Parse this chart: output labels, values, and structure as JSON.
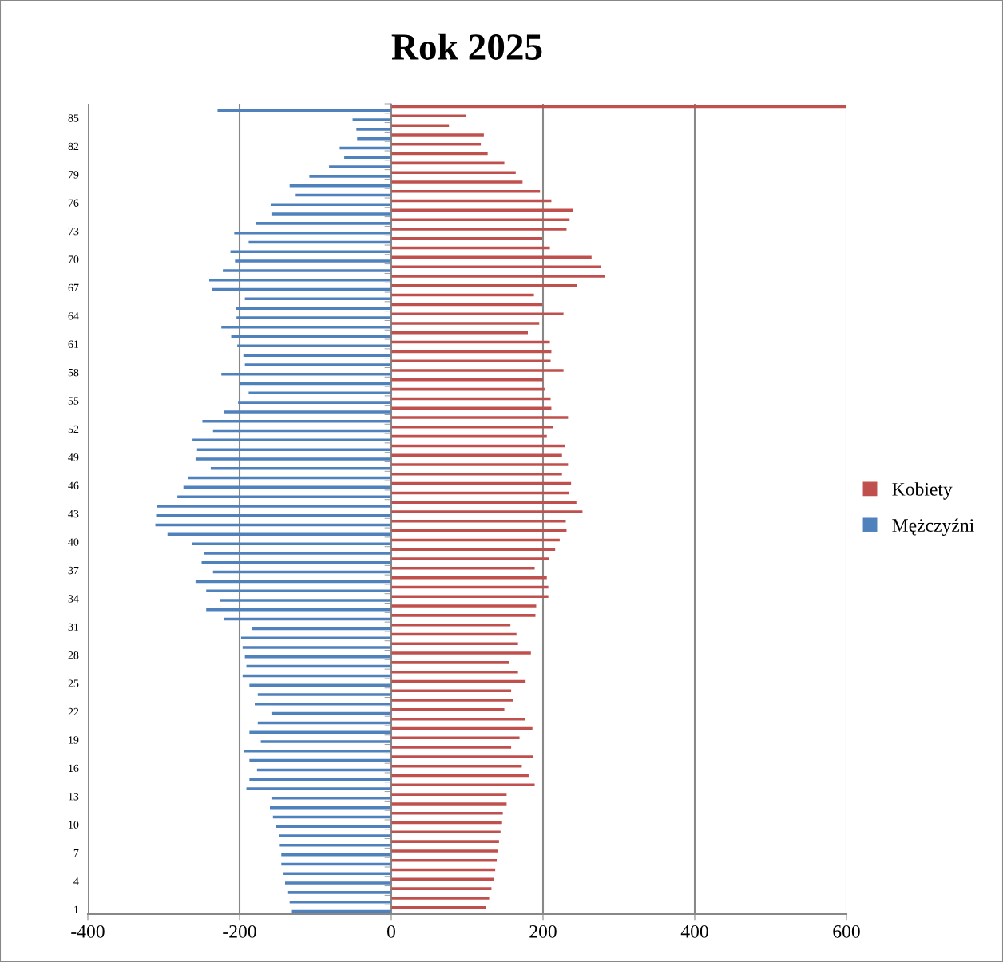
{
  "chart_data": {
    "type": "bar",
    "orientation": "horizontal",
    "title": "Rok 2025",
    "categories": [
      null,
      "85",
      null,
      null,
      "82",
      null,
      null,
      "79",
      null,
      null,
      "76",
      null,
      null,
      "73",
      null,
      null,
      "70",
      null,
      null,
      "67",
      null,
      null,
      "64",
      null,
      null,
      "61",
      null,
      null,
      "58",
      null,
      null,
      "55",
      null,
      null,
      "52",
      null,
      null,
      "49",
      null,
      null,
      "46",
      null,
      null,
      "43",
      null,
      null,
      "40",
      null,
      null,
      "37",
      null,
      null,
      "34",
      null,
      null,
      "31",
      null,
      null,
      "28",
      null,
      null,
      "25",
      null,
      null,
      "22",
      null,
      null,
      "19",
      null,
      null,
      "16",
      null,
      null,
      "13",
      null,
      null,
      "10",
      null,
      null,
      "7",
      null,
      null,
      "4",
      null,
      null,
      "1"
    ],
    "series": [
      {
        "name": "Kobiety",
        "color": "#c0504d",
        "values": [
          600,
          99,
          76,
          122,
          118,
          127,
          149,
          164,
          173,
          196,
          211,
          240,
          235,
          231,
          199,
          209,
          264,
          276,
          282,
          245,
          188,
          199,
          227,
          195,
          180,
          209,
          211,
          210,
          227,
          200,
          202,
          210,
          211,
          233,
          213,
          205,
          229,
          225,
          233,
          225,
          237,
          234,
          244,
          252,
          230,
          231,
          222,
          216,
          208,
          189,
          205,
          207,
          207,
          191,
          190,
          157,
          165,
          167,
          184,
          155,
          167,
          177,
          158,
          161,
          149,
          176,
          186,
          169,
          158,
          187,
          172,
          181,
          189,
          152,
          152,
          147,
          146,
          144,
          142,
          141,
          139,
          137,
          135,
          132,
          129,
          125
        ]
      },
      {
        "name": "Mężczyźni",
        "color": "#4f81bd",
        "values": [
          -229,
          -51,
          -46,
          -45,
          -68,
          -62,
          -82,
          -108,
          -134,
          -126,
          -159,
          -158,
          -179,
          -207,
          -188,
          -212,
          -206,
          -222,
          -240,
          -236,
          -193,
          -205,
          -204,
          -224,
          -211,
          -203,
          -195,
          -193,
          -224,
          -200,
          -188,
          -202,
          -220,
          -249,
          -235,
          -262,
          -256,
          -258,
          -238,
          -268,
          -274,
          -282,
          -309,
          -310,
          -311,
          -295,
          -263,
          -247,
          -250,
          -235,
          -258,
          -244,
          -226,
          -244,
          -220,
          -184,
          -198,
          -196,
          -193,
          -191,
          -196,
          -187,
          -176,
          -180,
          -158,
          -176,
          -187,
          -172,
          -194,
          -187,
          -177,
          -187,
          -191,
          -158,
          -160,
          -156,
          -152,
          -148,
          -147,
          -145,
          -145,
          -142,
          -140,
          -136,
          -134,
          -131
        ]
      }
    ],
    "xlim": [
      -400,
      600
    ],
    "xticks": [
      -400,
      -200,
      0,
      200,
      400,
      600
    ],
    "grid": "x",
    "legend": "right"
  }
}
